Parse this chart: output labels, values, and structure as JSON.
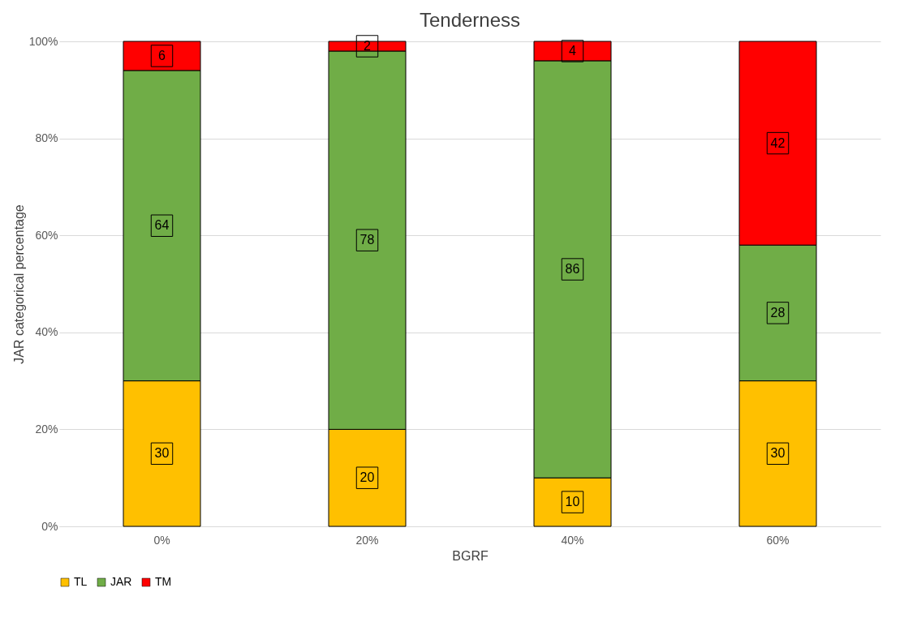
{
  "chart_data": {
    "type": "bar",
    "title": "Tenderness",
    "xlabel": "BGRF",
    "ylabel": "JAR categorical percentage",
    "categories": [
      "0%",
      "20%",
      "40%",
      "60%"
    ],
    "stacked": true,
    "series": [
      {
        "name": "TL",
        "color": "#ffc000",
        "values": [
          30,
          20,
          10,
          30
        ]
      },
      {
        "name": "JAR",
        "color": "#70ad47",
        "values": [
          64,
          78,
          86,
          28
        ]
      },
      {
        "name": "TM",
        "color": "#ff0000",
        "values": [
          6,
          2,
          4,
          42
        ]
      }
    ],
    "ylim": [
      0,
      100
    ],
    "yticks": [
      {
        "value": 0,
        "label": "0%"
      },
      {
        "value": 20,
        "label": "20%"
      },
      {
        "value": 40,
        "label": "40%"
      },
      {
        "value": 60,
        "label": "60%"
      },
      {
        "value": 80,
        "label": "80%"
      },
      {
        "value": 100,
        "label": "100%"
      }
    ],
    "grid": "y",
    "legend": "bottom",
    "data_labels": true
  }
}
